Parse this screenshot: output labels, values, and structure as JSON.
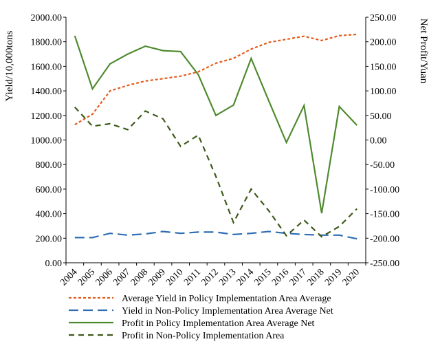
{
  "chart_data": {
    "type": "line",
    "categories": [
      "2004",
      "2005",
      "2006",
      "2007",
      "2008",
      "2009",
      "2010",
      "2011",
      "2012",
      "2013",
      "2014",
      "2015",
      "2016",
      "2017",
      "2018",
      "2019",
      "2020"
    ],
    "ylabel_left": "Yield/10,000tons",
    "ylabel_right": "Net Profit/Yuan",
    "ylim_left": [
      0,
      2000
    ],
    "ylim_right": [
      -250,
      250
    ],
    "yticks_left": [
      "0.00",
      "200.00",
      "400.00",
      "600.00",
      "800.00",
      "1000.00",
      "1200.00",
      "1400.00",
      "1600.00",
      "1800.00",
      "2000.00"
    ],
    "yticks_right": [
      "-250.00",
      "-200.00",
      "-150.00",
      "-100.00",
      "-50.00",
      "0.00",
      "50.00",
      "100.00",
      "150.00",
      "200.00",
      "250.00"
    ],
    "series": [
      {
        "name": "Average Yield in Policy Implementation Area Average",
        "axis": "left",
        "style": "short-dash",
        "color": "#E35A1A",
        "values": [
          1125,
          1210,
          1400,
          1445,
          1480,
          1500,
          1520,
          1555,
          1625,
          1665,
          1740,
          1795,
          1820,
          1845,
          1810,
          1850,
          1860
        ]
      },
      {
        "name": "Yield in Non-Policy Implementation Area Average Net",
        "axis": "left",
        "style": "long-dash",
        "color": "#2E6DB4",
        "values": [
          205,
          205,
          240,
          225,
          235,
          255,
          240,
          250,
          250,
          230,
          240,
          255,
          240,
          230,
          225,
          225,
          195
        ]
      },
      {
        "name": "Profit in Policy Implementation Area Average Net",
        "axis": "right",
        "style": "solid",
        "color": "#4E8A2E",
        "values": [
          212,
          104,
          155,
          175,
          191,
          182,
          180,
          133,
          50,
          71,
          166,
          80,
          -5,
          70,
          -149,
          68,
          30
        ]
      },
      {
        "name": "Profit in Non-Policy Implementation Area",
        "axis": "right",
        "style": "dash",
        "color": "#3D5A1A",
        "values": [
          67,
          28,
          33,
          21,
          59,
          43,
          -13,
          10,
          -74,
          -168,
          -100,
          -144,
          -195,
          -163,
          -197,
          -176,
          -140
        ]
      }
    ]
  }
}
